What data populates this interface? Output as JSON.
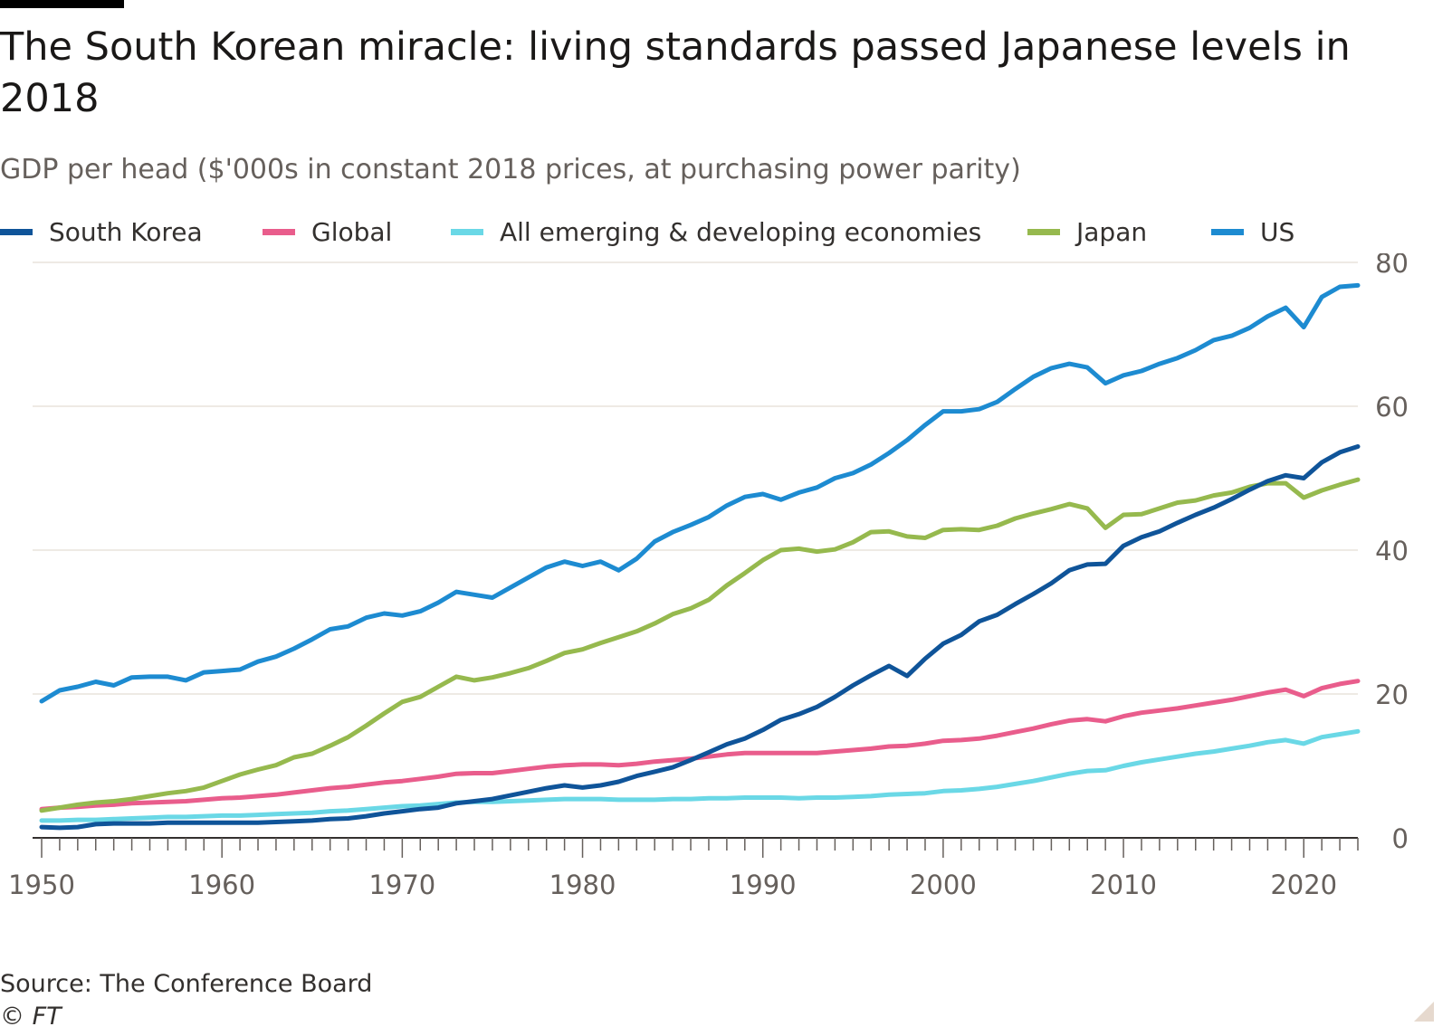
{
  "header": {
    "title": "The South Korean miracle: living standards passed Japanese levels in 2018",
    "subtitle": "GDP per head ($'000s in constant 2018 prices, at purchasing power parity)"
  },
  "footer": {
    "source": "Source: The Conference Board",
    "copyright": "© FT"
  },
  "colors": {
    "south_korea": "#0f5499",
    "global": "#e95d8c",
    "emerging": "#6ad8e6",
    "japan": "#96b94e",
    "us": "#1d8bd1",
    "grid": "#e9e4dc",
    "axis_text": "#66605c"
  },
  "chart_data": {
    "type": "line",
    "title": "The South Korean miracle: living standards passed Japanese levels in 2018",
    "subtitle": "GDP per head ($'000s in constant 2018 prices, at purchasing power parity)",
    "xlabel": "",
    "ylabel": "",
    "xlim": [
      1950,
      2023
    ],
    "ylim": [
      0,
      80
    ],
    "y_axis_side": "right",
    "x_ticks": [
      1950,
      1960,
      1970,
      1980,
      1990,
      2000,
      2010,
      2020
    ],
    "x_tick_labels": [
      "1950",
      "1960",
      "1970",
      "1980",
      "1990",
      "2000",
      "2010",
      "2020"
    ],
    "y_ticks": [
      0,
      20,
      40,
      60,
      80
    ],
    "y_tick_labels": [
      "0",
      "20",
      "40",
      "60",
      "80"
    ],
    "grid": true,
    "legend_position": "top",
    "x": [
      1950,
      1951,
      1952,
      1953,
      1954,
      1955,
      1956,
      1957,
      1958,
      1959,
      1960,
      1961,
      1962,
      1963,
      1964,
      1965,
      1966,
      1967,
      1968,
      1969,
      1970,
      1971,
      1972,
      1973,
      1974,
      1975,
      1976,
      1977,
      1978,
      1979,
      1980,
      1981,
      1982,
      1983,
      1984,
      1985,
      1986,
      1987,
      1988,
      1989,
      1990,
      1991,
      1992,
      1993,
      1994,
      1995,
      1996,
      1997,
      1998,
      1999,
      2000,
      2001,
      2002,
      2003,
      2004,
      2005,
      2006,
      2007,
      2008,
      2009,
      2010,
      2011,
      2012,
      2013,
      2014,
      2015,
      2016,
      2017,
      2018,
      2019,
      2020,
      2021,
      2022,
      2023
    ],
    "series": [
      {
        "name": "South Korea",
        "key": "south_korea",
        "values": [
          1.5,
          1.4,
          1.5,
          1.9,
          2.0,
          2.0,
          2.0,
          2.1,
          2.1,
          2.1,
          2.1,
          2.1,
          2.1,
          2.2,
          2.3,
          2.4,
          2.6,
          2.7,
          3.0,
          3.4,
          3.7,
          4.0,
          4.2,
          4.8,
          5.1,
          5.4,
          5.9,
          6.4,
          6.9,
          7.3,
          7.0,
          7.3,
          7.8,
          8.6,
          9.2,
          9.8,
          10.8,
          11.9,
          13.0,
          13.8,
          15.0,
          16.4,
          17.2,
          18.2,
          19.6,
          21.2,
          22.6,
          23.9,
          22.5,
          24.9,
          27.0,
          28.2,
          30.1,
          31.0,
          32.5,
          33.9,
          35.4,
          37.2,
          38.0,
          38.1,
          40.6,
          41.8,
          42.6,
          43.8,
          44.9,
          45.9,
          47.1,
          48.4,
          49.6,
          50.4,
          50.0,
          52.2,
          53.6,
          54.4
        ]
      },
      {
        "name": "Global",
        "key": "global",
        "values": [
          4.0,
          4.2,
          4.3,
          4.5,
          4.6,
          4.8,
          4.9,
          5.0,
          5.1,
          5.3,
          5.5,
          5.6,
          5.8,
          6.0,
          6.3,
          6.6,
          6.9,
          7.1,
          7.4,
          7.7,
          7.9,
          8.2,
          8.5,
          8.9,
          9.0,
          9.0,
          9.3,
          9.6,
          9.9,
          10.1,
          10.2,
          10.2,
          10.1,
          10.3,
          10.6,
          10.8,
          11.0,
          11.3,
          11.6,
          11.8,
          11.8,
          11.8,
          11.8,
          11.8,
          12.0,
          12.2,
          12.4,
          12.7,
          12.8,
          13.1,
          13.5,
          13.6,
          13.8,
          14.2,
          14.7,
          15.2,
          15.8,
          16.3,
          16.5,
          16.2,
          16.9,
          17.4,
          17.7,
          18.0,
          18.4,
          18.8,
          19.2,
          19.7,
          20.2,
          20.6,
          19.7,
          20.8,
          21.4,
          21.8
        ]
      },
      {
        "name": "All emerging & developing economies",
        "key": "emerging",
        "values": [
          2.4,
          2.4,
          2.5,
          2.5,
          2.6,
          2.7,
          2.8,
          2.9,
          2.9,
          3.0,
          3.1,
          3.1,
          3.2,
          3.3,
          3.4,
          3.5,
          3.7,
          3.8,
          4.0,
          4.2,
          4.4,
          4.5,
          4.7,
          4.9,
          5.0,
          5.0,
          5.1,
          5.2,
          5.3,
          5.4,
          5.4,
          5.4,
          5.3,
          5.3,
          5.3,
          5.4,
          5.4,
          5.5,
          5.5,
          5.6,
          5.6,
          5.6,
          5.5,
          5.6,
          5.6,
          5.7,
          5.8,
          6.0,
          6.1,
          6.2,
          6.5,
          6.6,
          6.8,
          7.1,
          7.5,
          7.9,
          8.4,
          8.9,
          9.3,
          9.4,
          10.0,
          10.5,
          10.9,
          11.3,
          11.7,
          12.0,
          12.4,
          12.8,
          13.3,
          13.6,
          13.1,
          14.0,
          14.4,
          14.8
        ]
      },
      {
        "name": "Japan",
        "key": "japan",
        "values": [
          3.8,
          4.2,
          4.6,
          4.9,
          5.1,
          5.4,
          5.8,
          6.2,
          6.5,
          7.0,
          7.9,
          8.8,
          9.5,
          10.1,
          11.2,
          11.7,
          12.8,
          14.0,
          15.6,
          17.3,
          18.9,
          19.6,
          21.0,
          22.4,
          21.9,
          22.3,
          22.9,
          23.6,
          24.6,
          25.7,
          26.2,
          27.1,
          27.9,
          28.7,
          29.8,
          31.1,
          31.9,
          33.1,
          35.1,
          36.8,
          38.6,
          40.0,
          40.2,
          39.8,
          40.1,
          41.1,
          42.5,
          42.6,
          41.9,
          41.7,
          42.8,
          42.9,
          42.8,
          43.4,
          44.4,
          45.1,
          45.7,
          46.4,
          45.8,
          43.1,
          44.9,
          45.0,
          45.8,
          46.6,
          46.9,
          47.6,
          48.0,
          48.8,
          49.3,
          49.3,
          47.3,
          48.3,
          49.1,
          49.8
        ]
      },
      {
        "name": "US",
        "key": "us",
        "values": [
          19.0,
          20.5,
          21.0,
          21.7,
          21.2,
          22.3,
          22.4,
          22.4,
          21.9,
          23.0,
          23.2,
          23.4,
          24.5,
          25.2,
          26.3,
          27.6,
          29.0,
          29.4,
          30.6,
          31.2,
          30.9,
          31.5,
          32.7,
          34.2,
          33.8,
          33.4,
          34.8,
          36.2,
          37.6,
          38.4,
          37.8,
          38.4,
          37.2,
          38.8,
          41.2,
          42.5,
          43.5,
          44.6,
          46.2,
          47.4,
          47.8,
          47.0,
          48.0,
          48.7,
          50.0,
          50.7,
          51.9,
          53.5,
          55.3,
          57.4,
          59.3,
          59.3,
          59.6,
          60.6,
          62.4,
          64.1,
          65.3,
          65.9,
          65.4,
          63.2,
          64.3,
          64.9,
          65.9,
          66.7,
          67.8,
          69.2,
          69.8,
          70.9,
          72.5,
          73.7,
          71.0,
          75.2,
          76.6,
          76.8
        ]
      }
    ]
  }
}
